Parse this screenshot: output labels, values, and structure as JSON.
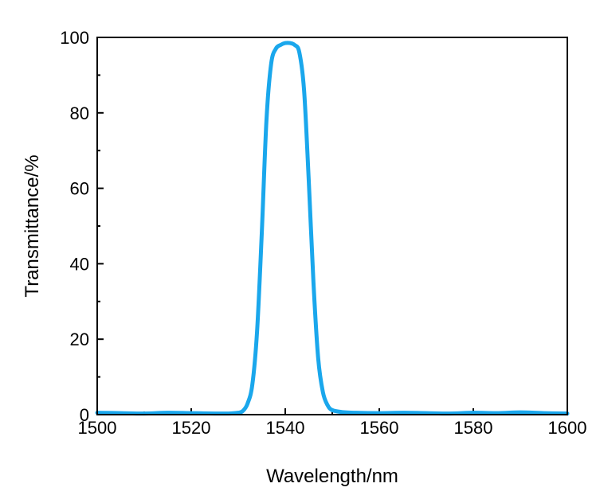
{
  "chart_data": {
    "type": "line",
    "title": "",
    "xlabel": "Wavelength/nm",
    "ylabel": "Transmittance/%",
    "xlim": [
      1500,
      1600
    ],
    "ylim": [
      0,
      100
    ],
    "x_ticks": [
      "1500",
      "1520",
      "1540",
      "1560",
      "1580",
      "1600"
    ],
    "y_ticks": [
      "0",
      "20",
      "40",
      "60",
      "80",
      "100"
    ],
    "grid": false,
    "legend": "none",
    "line_color": "#1aa7ec",
    "series": [
      {
        "x": [
          1500,
          1505,
          1510,
          1515,
          1520,
          1525,
          1528,
          1530,
          1531,
          1532,
          1533,
          1534,
          1535,
          1536,
          1537,
          1538,
          1539,
          1540,
          1541,
          1542,
          1543,
          1544,
          1545,
          1546,
          1547,
          1548,
          1549,
          1550,
          1552,
          1555,
          1560,
          1565,
          1570,
          1575,
          1580,
          1585,
          1590,
          1595,
          1600
        ],
        "y": [
          0.5,
          0.4,
          0.3,
          0.5,
          0.4,
          0.3,
          0.3,
          0.5,
          1,
          3,
          8,
          22,
          48,
          78,
          93,
          97,
          98,
          98.5,
          98.5,
          98,
          96,
          86,
          62,
          35,
          15,
          6,
          2.5,
          1.2,
          0.7,
          0.5,
          0.4,
          0.5,
          0.4,
          0.3,
          0.5,
          0.4,
          0.6,
          0.4,
          0.3
        ]
      }
    ]
  }
}
